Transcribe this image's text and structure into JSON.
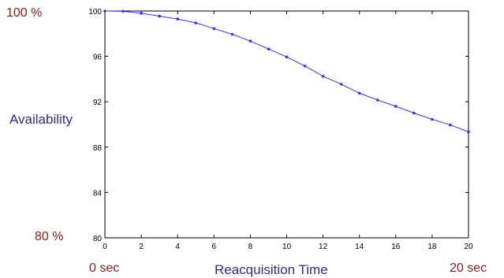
{
  "chart_data": {
    "type": "line",
    "xlabel": "Reacquisition Time",
    "ylabel": "Availability",
    "xlim": [
      0,
      20
    ],
    "ylim": [
      80,
      100
    ],
    "x_ticks": [
      "0",
      "2",
      "4",
      "6",
      "8",
      "10",
      "12",
      "14",
      "16",
      "18",
      "20"
    ],
    "y_ticks": [
      "80",
      "84",
      "88",
      "92",
      "96",
      "100"
    ],
    "grid": false,
    "series": [
      {
        "x": [
          0,
          1,
          2,
          3,
          4,
          5,
          6,
          7,
          8,
          9,
          10,
          11,
          12,
          13,
          14,
          15,
          16,
          17,
          18,
          19,
          20
        ],
        "y": [
          100,
          99.97,
          99.8,
          99.55,
          99.3,
          98.95,
          98.45,
          97.95,
          97.35,
          96.65,
          95.95,
          95.15,
          94.25,
          93.55,
          92.75,
          92.15,
          91.6,
          91.0,
          90.45,
          89.95,
          89.35
        ]
      }
    ],
    "annotations": {
      "y_top": "100 %",
      "y_bottom": "80 %",
      "x_left": "0 sec",
      "x_right": "20 sec"
    },
    "colors": {
      "line": "#3333ff",
      "axis": "#000000",
      "annotation": "#8b1a1a",
      "axis_title": "#2b2b8c"
    }
  }
}
